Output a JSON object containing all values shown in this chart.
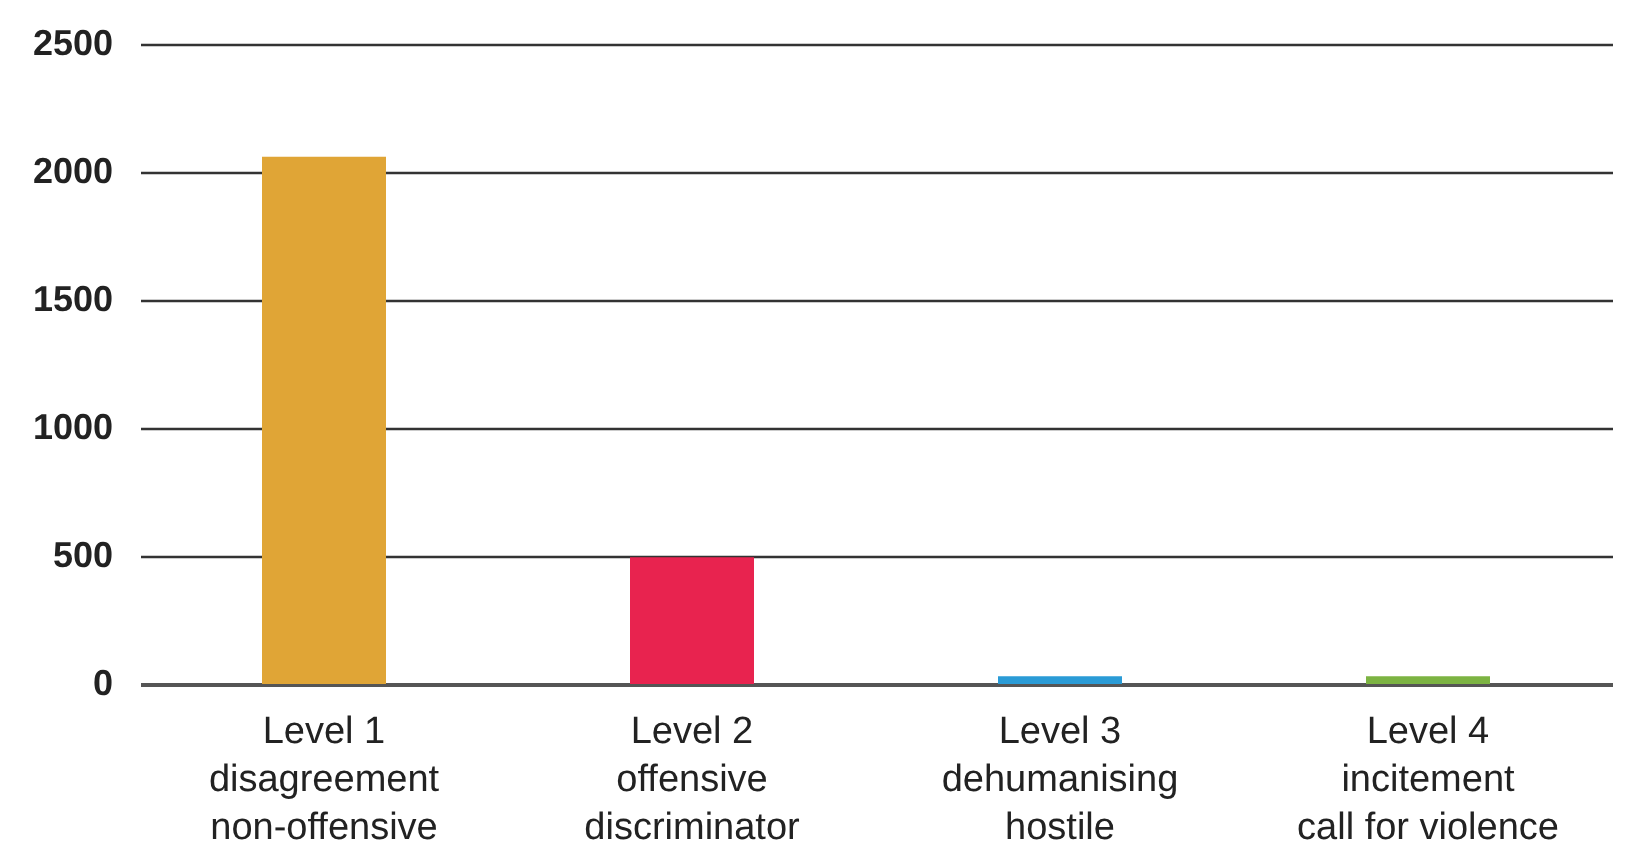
{
  "chart_data": {
    "type": "bar",
    "categories": [
      "Level 1\ndisagreement\nnon-offensive",
      "Level 2\noffensive\ndiscriminator",
      "Level 3\ndehumanising\nhostile",
      "Level 4\nincitement\ncall for violence"
    ],
    "values": [
      2060,
      495,
      30,
      30
    ],
    "colors": [
      "#e0a536",
      "#e8234f",
      "#2a9bd6",
      "#7cb342"
    ],
    "ylim": [
      0,
      2500
    ],
    "yticks": [
      0,
      500,
      1000,
      1500,
      2000,
      2500
    ],
    "grid": "y"
  }
}
